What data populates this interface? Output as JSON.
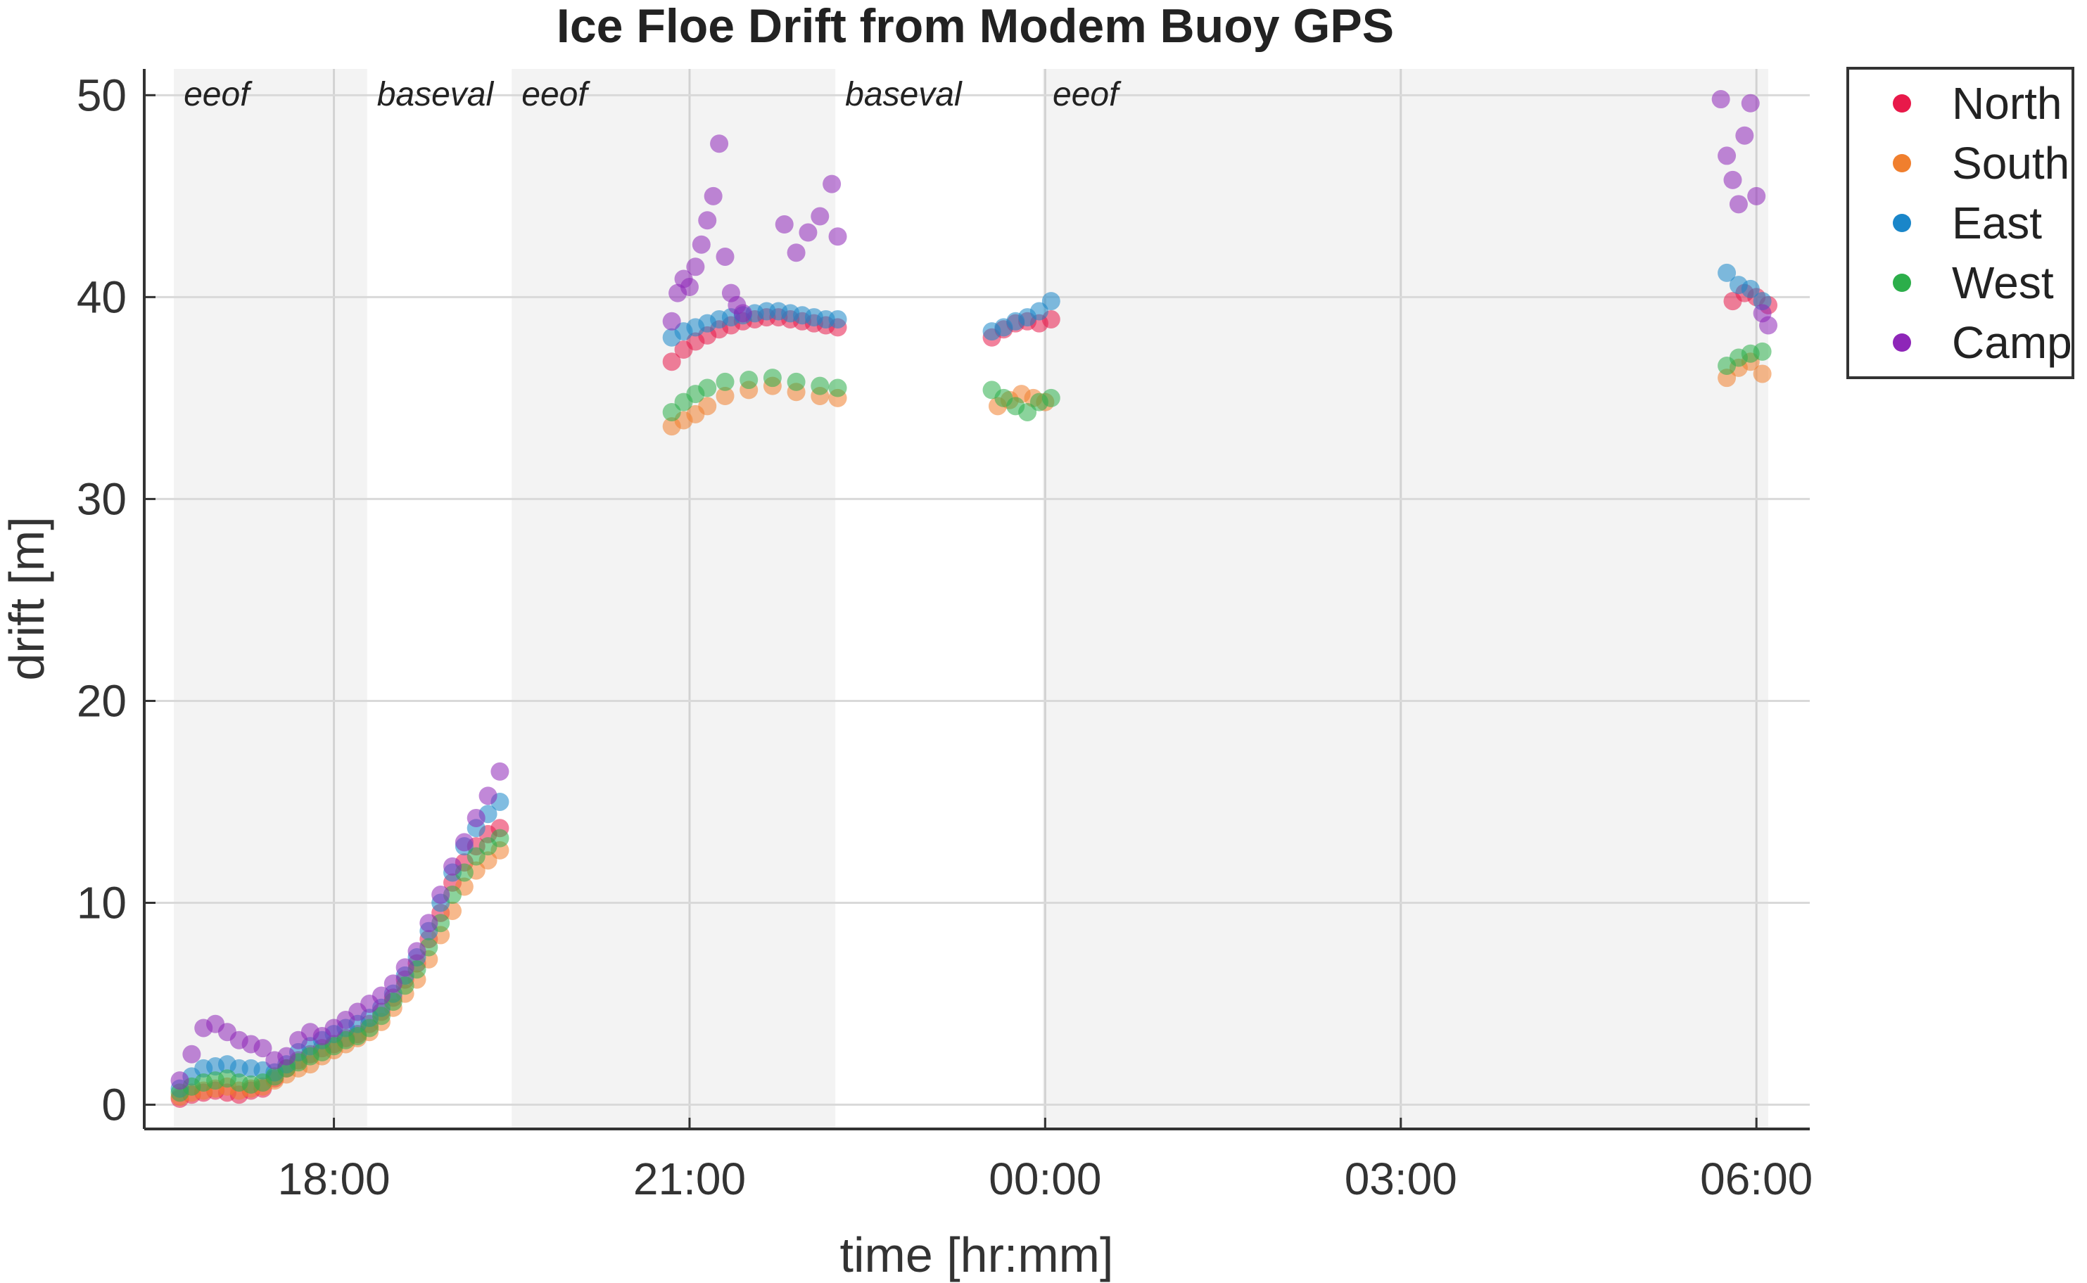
{
  "chart_data": {
    "type": "scatter",
    "title": "Ice Floe Drift from Modem Buoy GPS",
    "xlabel": "time [hr:mm]",
    "ylabel": "drift [m]",
    "x_unit": "hours since 00:00 of the first day (ticks labelled hr:mm)",
    "xlim": [
      16.4,
      30.45
    ],
    "ylim": [
      -1.2,
      51.3
    ],
    "xticks": [
      {
        "value": 18,
        "label": "18:00"
      },
      {
        "value": 21,
        "label": "21:00"
      },
      {
        "value": 24,
        "label": "00:00"
      },
      {
        "value": 27,
        "label": "03:00"
      },
      {
        "value": 30,
        "label": "06:00"
      }
    ],
    "yticks": [
      {
        "value": 0,
        "label": "0"
      },
      {
        "value": 10,
        "label": "10"
      },
      {
        "value": 20,
        "label": "20"
      },
      {
        "value": 30,
        "label": "30"
      },
      {
        "value": 40,
        "label": "40"
      },
      {
        "value": 50,
        "label": "50"
      }
    ],
    "grid": true,
    "legend_position": "outside-top-right",
    "phases": [
      {
        "label": "eeof",
        "start": 16.65,
        "end": 18.28,
        "shaded": true
      },
      {
        "label": "baseval",
        "start": 18.28,
        "end": 19.5,
        "shaded": false
      },
      {
        "label": "eeof",
        "start": 19.5,
        "end": 22.23,
        "shaded": true
      },
      {
        "label": "baseval",
        "start": 22.23,
        "end": 23.98,
        "shaded": false
      },
      {
        "label": "eeof",
        "start": 23.98,
        "end": 30.1,
        "shaded": true
      }
    ],
    "series": [
      {
        "name": "North",
        "color": "#e8194a",
        "x": [
          16.7,
          16.8,
          16.9,
          17.0,
          17.1,
          17.2,
          17.3,
          17.4,
          17.5,
          17.6,
          17.7,
          17.8,
          17.9,
          18.0,
          18.1,
          18.2,
          18.3,
          18.4,
          18.5,
          18.6,
          18.7,
          18.8,
          18.9,
          19.0,
          19.1,
          19.2,
          19.3,
          19.4,
          20.85,
          20.95,
          21.05,
          21.15,
          21.25,
          21.35,
          21.45,
          21.55,
          21.65,
          21.75,
          21.85,
          21.95,
          22.05,
          22.15,
          22.25,
          23.55,
          23.65,
          23.75,
          23.85,
          23.95,
          24.05,
          29.8,
          29.9,
          30.0,
          30.1
        ],
        "y": [
          0.3,
          0.5,
          0.6,
          0.7,
          0.6,
          0.5,
          0.7,
          0.8,
          1.3,
          1.8,
          2.2,
          2.5,
          2.8,
          3.0,
          3.3,
          3.5,
          4.0,
          4.6,
          5.3,
          6.2,
          7.0,
          8.2,
          9.5,
          11.0,
          12.0,
          12.8,
          13.4,
          13.7,
          36.8,
          37.4,
          37.8,
          38.1,
          38.4,
          38.6,
          38.8,
          38.9,
          39.0,
          39.0,
          38.9,
          38.8,
          38.7,
          38.6,
          38.5,
          38.0,
          38.4,
          38.7,
          38.8,
          38.7,
          38.9,
          39.8,
          40.2,
          40.0,
          39.6
        ]
      },
      {
        "name": "South",
        "color": "#f07f2e",
        "x": [
          16.7,
          16.8,
          16.9,
          17.0,
          17.1,
          17.2,
          17.3,
          17.4,
          17.5,
          17.6,
          17.7,
          17.8,
          17.9,
          18.0,
          18.1,
          18.2,
          18.3,
          18.4,
          18.5,
          18.6,
          18.7,
          18.8,
          18.9,
          19.0,
          19.1,
          19.2,
          19.3,
          19.4,
          20.85,
          20.95,
          21.05,
          21.15,
          21.3,
          21.5,
          21.7,
          21.9,
          22.1,
          22.25,
          23.6,
          23.7,
          23.8,
          23.9,
          24.0,
          29.75,
          29.85,
          29.95,
          30.05
        ],
        "y": [
          0.4,
          0.6,
          0.7,
          0.8,
          0.9,
          0.7,
          0.8,
          0.9,
          1.2,
          1.5,
          1.8,
          2.0,
          2.4,
          2.7,
          3.0,
          3.3,
          3.6,
          4.1,
          4.8,
          5.5,
          6.2,
          7.2,
          8.4,
          9.6,
          10.8,
          11.6,
          12.1,
          12.6,
          33.6,
          33.9,
          34.2,
          34.6,
          35.1,
          35.4,
          35.6,
          35.3,
          35.1,
          35.0,
          34.6,
          34.9,
          35.2,
          35.0,
          34.8,
          36.0,
          36.5,
          36.8,
          36.2
        ]
      },
      {
        "name": "East",
        "color": "#1a86c9",
        "x": [
          16.7,
          16.8,
          16.9,
          17.0,
          17.1,
          17.2,
          17.3,
          17.4,
          17.5,
          17.6,
          17.7,
          17.8,
          17.9,
          18.0,
          18.1,
          18.2,
          18.3,
          18.4,
          18.5,
          18.6,
          18.7,
          18.8,
          18.9,
          19.0,
          19.1,
          19.2,
          19.3,
          19.4,
          20.85,
          20.95,
          21.05,
          21.15,
          21.25,
          21.35,
          21.45,
          21.55,
          21.65,
          21.75,
          21.85,
          21.95,
          22.05,
          22.15,
          22.25,
          23.55,
          23.65,
          23.75,
          23.85,
          23.95,
          24.05,
          29.75,
          29.85,
          29.95,
          30.05
        ],
        "y": [
          0.8,
          1.4,
          1.8,
          1.9,
          2.0,
          1.8,
          1.8,
          1.7,
          1.6,
          2.0,
          2.6,
          2.9,
          3.2,
          3.5,
          3.8,
          4.0,
          4.3,
          4.8,
          5.5,
          6.4,
          7.3,
          8.6,
          10.0,
          11.5,
          12.8,
          13.7,
          14.4,
          15.0,
          38.0,
          38.3,
          38.5,
          38.7,
          38.9,
          39.0,
          39.1,
          39.2,
          39.3,
          39.3,
          39.2,
          39.1,
          39.0,
          38.9,
          38.9,
          38.3,
          38.5,
          38.8,
          39.0,
          39.3,
          39.8,
          41.2,
          40.6,
          40.4,
          39.8
        ]
      },
      {
        "name": "West",
        "color": "#2cae4a",
        "x": [
          16.7,
          16.8,
          16.9,
          17.0,
          17.1,
          17.2,
          17.3,
          17.4,
          17.5,
          17.6,
          17.7,
          17.8,
          17.9,
          18.0,
          18.1,
          18.2,
          18.3,
          18.4,
          18.5,
          18.6,
          18.7,
          18.8,
          18.9,
          19.0,
          19.1,
          19.2,
          19.3,
          19.4,
          20.85,
          20.95,
          21.05,
          21.15,
          21.3,
          21.5,
          21.7,
          21.9,
          22.1,
          22.25,
          23.55,
          23.65,
          23.75,
          23.85,
          23.95,
          24.05,
          29.75,
          29.85,
          29.95,
          30.05
        ],
        "y": [
          0.6,
          0.9,
          1.1,
          1.2,
          1.3,
          1.1,
          1.0,
          1.1,
          1.4,
          1.8,
          2.1,
          2.4,
          2.6,
          2.9,
          3.2,
          3.4,
          3.8,
          4.4,
          5.1,
          5.9,
          6.7,
          7.8,
          9.0,
          10.4,
          11.5,
          12.3,
          12.8,
          13.2,
          34.3,
          34.8,
          35.2,
          35.5,
          35.8,
          35.9,
          36.0,
          35.8,
          35.6,
          35.5,
          35.4,
          35.0,
          34.6,
          34.3,
          34.8,
          35.0,
          36.6,
          37.0,
          37.2,
          37.3
        ]
      },
      {
        "name": "Camp",
        "color": "#8e26b8",
        "x": [
          16.7,
          16.8,
          16.9,
          17.0,
          17.1,
          17.2,
          17.3,
          17.4,
          17.5,
          17.6,
          17.7,
          17.8,
          17.9,
          18.0,
          18.1,
          18.2,
          18.3,
          18.4,
          18.5,
          18.6,
          18.7,
          18.8,
          18.9,
          19.0,
          19.1,
          19.2,
          19.3,
          19.4,
          20.85,
          20.9,
          20.95,
          21.0,
          21.05,
          21.1,
          21.15,
          21.2,
          21.25,
          21.3,
          21.35,
          21.4,
          21.45,
          21.8,
          21.9,
          22.0,
          22.1,
          22.2,
          22.25,
          29.7,
          29.75,
          29.8,
          29.85,
          29.9,
          29.95,
          30.0,
          30.05,
          30.1
        ],
        "y": [
          1.2,
          2.5,
          3.8,
          4.0,
          3.6,
          3.2,
          3.0,
          2.8,
          2.2,
          2.4,
          3.2,
          3.6,
          3.4,
          3.8,
          4.2,
          4.6,
          5.0,
          5.4,
          6.0,
          6.8,
          7.6,
          9.0,
          10.4,
          11.8,
          13.0,
          14.2,
          15.3,
          16.5,
          38.8,
          40.2,
          40.9,
          40.5,
          41.5,
          42.6,
          43.8,
          45.0,
          47.6,
          42.0,
          40.2,
          39.6,
          39.2,
          43.6,
          42.2,
          43.2,
          44.0,
          45.6,
          43.0,
          49.8,
          47.0,
          45.8,
          44.6,
          48.0,
          49.6,
          45.0,
          39.2,
          38.6
        ]
      }
    ]
  }
}
